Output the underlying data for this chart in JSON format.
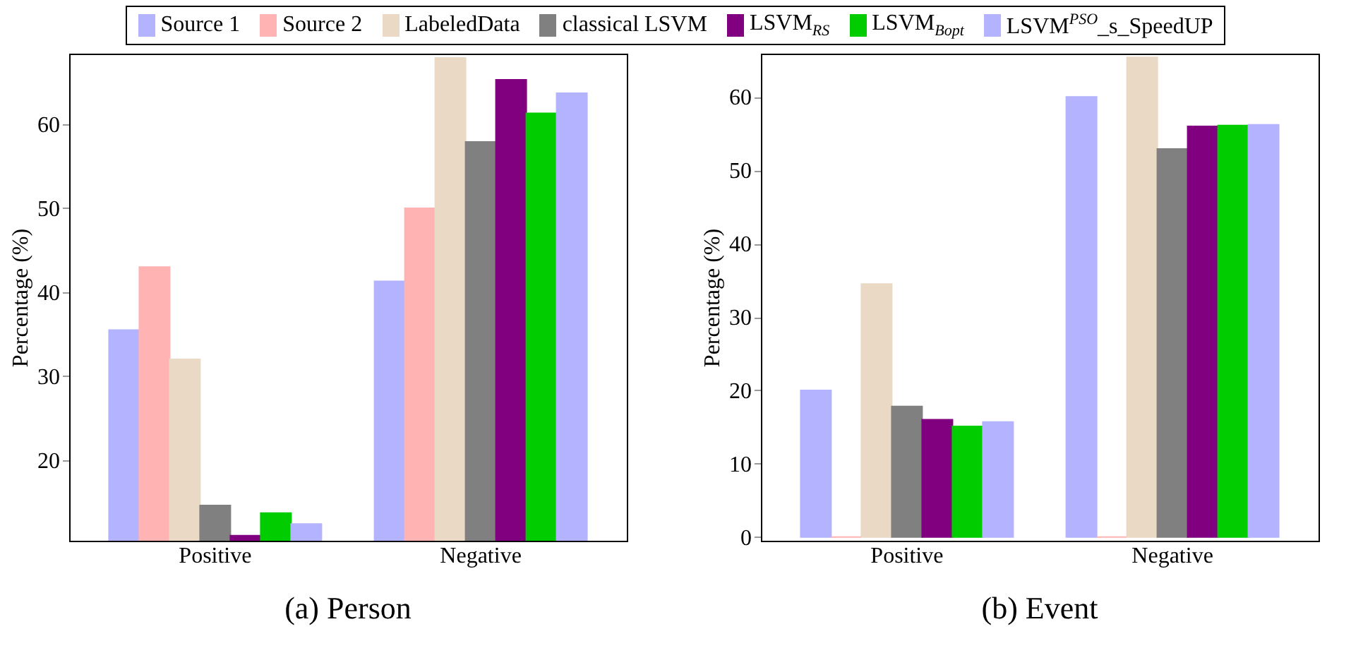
{
  "chart_data": [
    {
      "type": "bar",
      "title": "(a) Person",
      "ylabel": "Percentage (%)",
      "categories": [
        "Positive",
        "Negative"
      ],
      "ylim": [
        10.4,
        68.4
      ],
      "yticks": [
        20,
        30,
        40,
        50,
        60
      ],
      "legend": "top",
      "series": [
        {
          "name": "Source 1",
          "color": "#b3b3ff",
          "values": [
            35.5,
            41.3
          ]
        },
        {
          "name": "Source 2",
          "color": "#ffb3b3",
          "values": [
            43.0,
            50.0
          ]
        },
        {
          "name": "LabeledData",
          "color": "#ead9c5",
          "values": [
            32.0,
            67.9
          ]
        },
        {
          "name": "classical LSVM",
          "color": "#808080",
          "values": [
            14.6,
            57.9
          ]
        },
        {
          "name": "LSVM$_{RS}$",
          "color": "#800080",
          "values": [
            11.0,
            65.3
          ]
        },
        {
          "name": "LSVM$_{Bopt}$",
          "color": "#00cc00",
          "values": [
            13.7,
            61.3
          ]
        },
        {
          "name": "LSVM$^{PSO}$_s_SpeedUP",
          "color": "#b3b3ff",
          "values": [
            12.4,
            63.7
          ]
        }
      ]
    },
    {
      "type": "bar",
      "title": "(b) Event",
      "ylabel": "Percentage (%)",
      "categories": [
        "Positive",
        "Negative"
      ],
      "ylim": [
        -0.5,
        65.9
      ],
      "yticks": [
        0,
        10,
        20,
        30,
        40,
        50,
        60
      ],
      "legend": "top",
      "series": [
        {
          "name": "Source 1",
          "color": "#b3b3ff",
          "values": [
            20.0,
            60.0
          ]
        },
        {
          "name": "Source 2",
          "color": "#ffb3b3",
          "values": [
            0,
            0
          ]
        },
        {
          "name": "LabeledData",
          "color": "#ead9c5",
          "values": [
            34.5,
            65.4
          ]
        },
        {
          "name": "classical LSVM",
          "color": "#808080",
          "values": [
            17.8,
            52.9
          ]
        },
        {
          "name": "LSVM$_{RS}$",
          "color": "#800080",
          "values": [
            16.0,
            56.0
          ]
        },
        {
          "name": "LSVM$_{Bopt}$",
          "color": "#00cc00",
          "values": [
            15.1,
            56.1
          ]
        },
        {
          "name": "LSVM$^{PSO}$_s_SpeedUP",
          "color": "#b3b3ff",
          "values": [
            15.7,
            56.2
          ]
        }
      ]
    }
  ]
}
